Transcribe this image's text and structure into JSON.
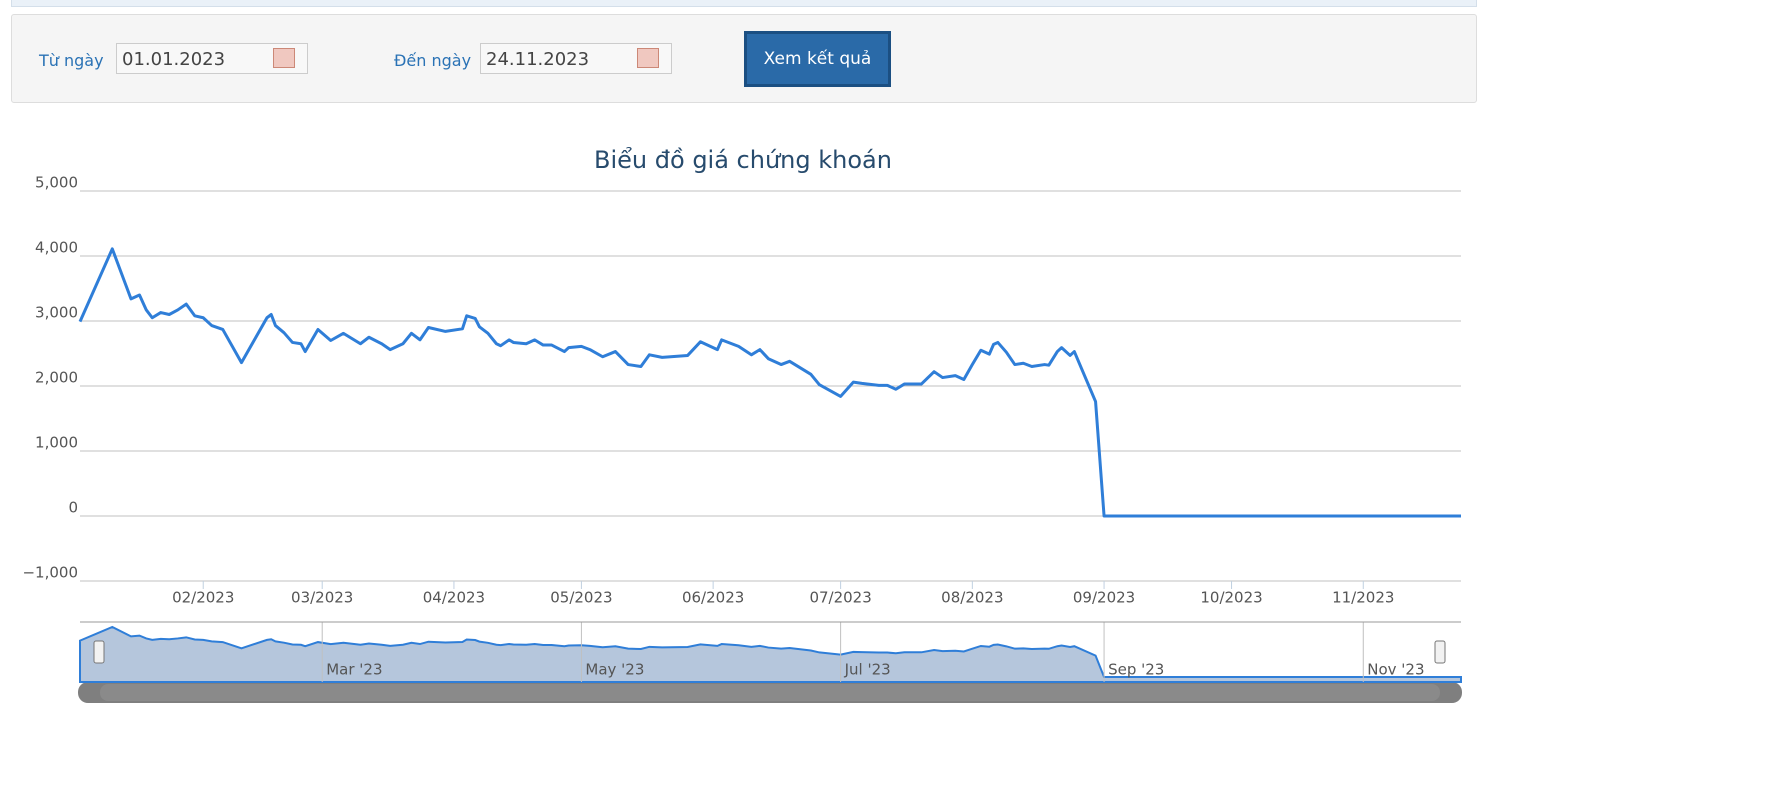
{
  "form": {
    "from_label": "Từ ngày",
    "from_value": "01.01.2023",
    "to_label": "Đến ngày",
    "to_value": "24.11.2023",
    "button": "Xem kết quả"
  },
  "chart_data": {
    "type": "line",
    "title": "Biểu đồ giá chứng khoán",
    "color": "#2f7ed8",
    "grid": true,
    "x": [
      2,
      9.6,
      14,
      16,
      17.6,
      19,
      21,
      23,
      25,
      27,
      29,
      31,
      33,
      35.6,
      40,
      46,
      47,
      48,
      50,
      52,
      54,
      55,
      58,
      61,
      64,
      68,
      70,
      73,
      75,
      78,
      80,
      82,
      84,
      88,
      92,
      93,
      95,
      96,
      98,
      100,
      101,
      103,
      104,
      107,
      109,
      111,
      113,
      116,
      117,
      120,
      122,
      125,
      128,
      131,
      134,
      136,
      139,
      145,
      148,
      152,
      153,
      157,
      160,
      162,
      164,
      167,
      169,
      174,
      176,
      181,
      184,
      186,
      190,
      192,
      194,
      196,
      200,
      203,
      205,
      208,
      210,
      212,
      214,
      216,
      217,
      218,
      220,
      222,
      224,
      226,
      229,
      230,
      232,
      233,
      235,
      236,
      241,
      243,
      327
    ],
    "values": [
      2990,
      4110,
      3340,
      3400,
      3170,
      3050,
      3130,
      3100,
      3170,
      3260,
      3080,
      3050,
      2930,
      2870,
      2360,
      3050,
      3100,
      2930,
      2820,
      2670,
      2650,
      2530,
      2870,
      2700,
      2810,
      2650,
      2750,
      2650,
      2560,
      2650,
      2810,
      2710,
      2900,
      2840,
      2880,
      3080,
      3040,
      2910,
      2810,
      2650,
      2620,
      2710,
      2670,
      2650,
      2710,
      2630,
      2630,
      2530,
      2590,
      2610,
      2560,
      2450,
      2530,
      2330,
      2300,
      2480,
      2440,
      2470,
      2680,
      2560,
      2710,
      2610,
      2480,
      2560,
      2420,
      2330,
      2380,
      2180,
      2020,
      1840,
      2060,
      2040,
      2010,
      2010,
      1950,
      2030,
      2030,
      2220,
      2130,
      2160,
      2100,
      2330,
      2550,
      2490,
      2640,
      2670,
      2520,
      2330,
      2350,
      2300,
      2330,
      2320,
      2530,
      2590,
      2470,
      2530,
      1760,
      0,
      0
    ],
    "xlim": [
      2,
      327
    ],
    "xticks": [
      {
        "value": 31,
        "label": "02/2023"
      },
      {
        "value": 59,
        "label": "03/2023"
      },
      {
        "value": 90,
        "label": "04/2023"
      },
      {
        "value": 120,
        "label": "05/2023"
      },
      {
        "value": 151,
        "label": "06/2023"
      },
      {
        "value": 181,
        "label": "07/2023"
      },
      {
        "value": 212,
        "label": "08/2023"
      },
      {
        "value": 243,
        "label": "09/2023"
      },
      {
        "value": 273,
        "label": "10/2023"
      },
      {
        "value": 304,
        "label": "11/2023"
      }
    ],
    "ylim": [
      -1000,
      5000
    ],
    "yticks": [
      {
        "value": -1000,
        "label": "−1,000"
      },
      0,
      {
        "value": 1000,
        "label": "1,000"
      },
      {
        "value": 2000,
        "label": "2,000"
      },
      {
        "value": 3000,
        "label": "3,000"
      },
      {
        "value": 4000,
        "label": "4,000"
      },
      {
        "value": 5000,
        "label": "5,000"
      }
    ],
    "navigator_ticks": [
      {
        "value": 59,
        "label": "Mar '23"
      },
      {
        "value": 120,
        "label": "May '23"
      },
      {
        "value": 181,
        "label": "Jul '23"
      },
      {
        "value": 243,
        "label": "Sep '23"
      },
      {
        "value": 304,
        "label": "Nov '23"
      }
    ]
  }
}
